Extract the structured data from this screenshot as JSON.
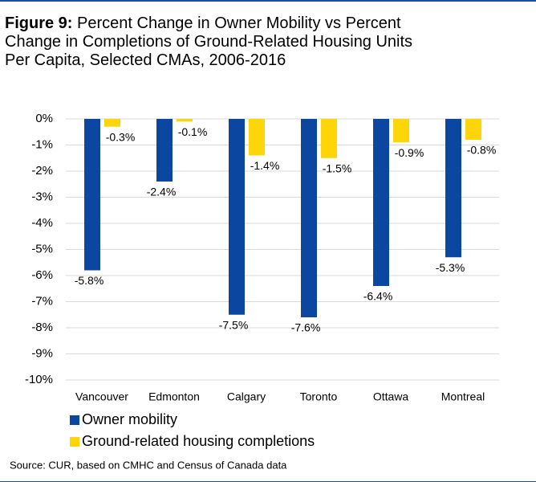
{
  "chart_data": {
    "type": "bar",
    "title_label": "Figure 9:",
    "title": "Percent Change in Owner Mobility vs Percent Change in Completions of Ground-Related Housing Units Per Capita, Selected CMAs, 2006-2016",
    "categories": [
      "Vancouver",
      "Edmonton",
      "Calgary",
      "Toronto",
      "Ottawa",
      "Montreal"
    ],
    "series": [
      {
        "name": "Owner mobility",
        "color": "#0b47a1",
        "values": [
          -5.8,
          -2.4,
          -7.5,
          -7.6,
          -6.4,
          -5.3
        ],
        "value_labels": [
          "-5.8%",
          "-2.4%",
          "-7.5%",
          "-7.6%",
          "-6.4%",
          "-5.3%"
        ]
      },
      {
        "name": "Ground-related housing completions",
        "color": "#fdd508",
        "values": [
          -0.3,
          -0.1,
          -1.4,
          -1.5,
          -0.9,
          -0.8
        ],
        "value_labels": [
          "-0.3%",
          "-0.1%",
          "-1.4%",
          "-1.5%",
          "-0.9%",
          "-0.8%"
        ]
      }
    ],
    "ylim": [
      -10,
      0
    ],
    "yticks": [
      {
        "value": 0,
        "label": "0%"
      },
      {
        "value": -1,
        "label": "-1%"
      },
      {
        "value": -2,
        "label": "-2%"
      },
      {
        "value": -3,
        "label": "-3%"
      },
      {
        "value": -4,
        "label": "-4%"
      },
      {
        "value": -5,
        "label": "-5%"
      },
      {
        "value": -6,
        "label": "-6%"
      },
      {
        "value": -7,
        "label": "-7%"
      },
      {
        "value": -8,
        "label": "-8%"
      },
      {
        "value": -9,
        "label": "-9%"
      },
      {
        "value": -10,
        "label": "-10%"
      }
    ],
    "grid": true,
    "source": "Source: CUR, based on CMHC and Census of Canada data"
  }
}
